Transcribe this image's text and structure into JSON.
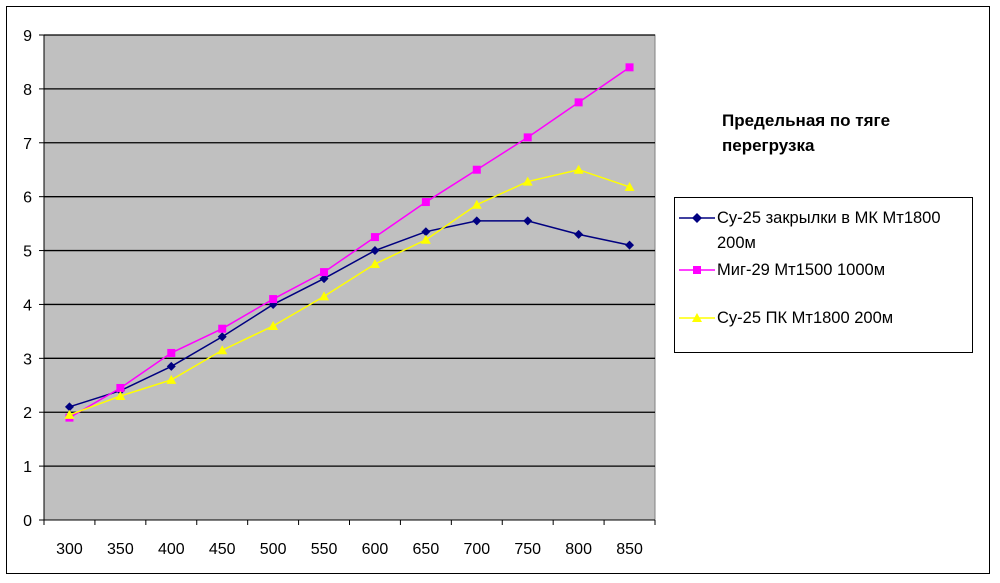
{
  "chart_data": {
    "type": "line",
    "title": "Предельная по тяге перегрузка",
    "title_lines": [
      "Предельная по тяге",
      "перегрузка"
    ],
    "xlabel": "",
    "ylabel": "",
    "x": [
      300,
      350,
      400,
      450,
      500,
      550,
      600,
      650,
      700,
      750,
      800,
      850
    ],
    "x_tick_labels": [
      "300",
      "350",
      "400",
      "450",
      "500",
      "550",
      "600",
      "650",
      "700",
      "750",
      "800",
      "850"
    ],
    "ylim": [
      0,
      9
    ],
    "y_ticks": [
      0,
      1,
      2,
      3,
      4,
      5,
      6,
      7,
      8,
      9
    ],
    "y_tick_labels": [
      "0",
      "1",
      "2",
      "3",
      "4",
      "5",
      "6",
      "7",
      "8",
      "9"
    ],
    "grid": "horizontal",
    "legend": "right",
    "plot_background": "#c0c0c0",
    "series": [
      {
        "name": "Су-25 закрылки в МК Мт1800 200м",
        "name_lines": [
          "Су-25 закрылки в МК Мт1800",
          "200м"
        ],
        "color": "#000080",
        "marker": "diamond",
        "values": [
          2.1,
          2.4,
          2.85,
          3.4,
          4.0,
          4.48,
          5.0,
          5.35,
          5.55,
          5.55,
          5.3,
          5.1
        ]
      },
      {
        "name": "Миг-29 Мт1500 1000м",
        "name_lines": [
          "Миг-29 Мт1500 1000м"
        ],
        "color": "#ff00ff",
        "marker": "square",
        "values": [
          1.9,
          2.45,
          3.1,
          3.55,
          4.1,
          4.6,
          5.25,
          5.9,
          6.5,
          7.1,
          7.75,
          8.4
        ]
      },
      {
        "name": "Су-25 ПК Мт1800 200м",
        "name_lines": [
          "Су-25 ПК Мт1800 200м"
        ],
        "color": "#ffff00",
        "marker": "triangle",
        "values": [
          1.95,
          2.3,
          2.6,
          3.15,
          3.6,
          4.15,
          4.75,
          5.2,
          5.85,
          6.28,
          6.5,
          6.18
        ]
      }
    ]
  }
}
